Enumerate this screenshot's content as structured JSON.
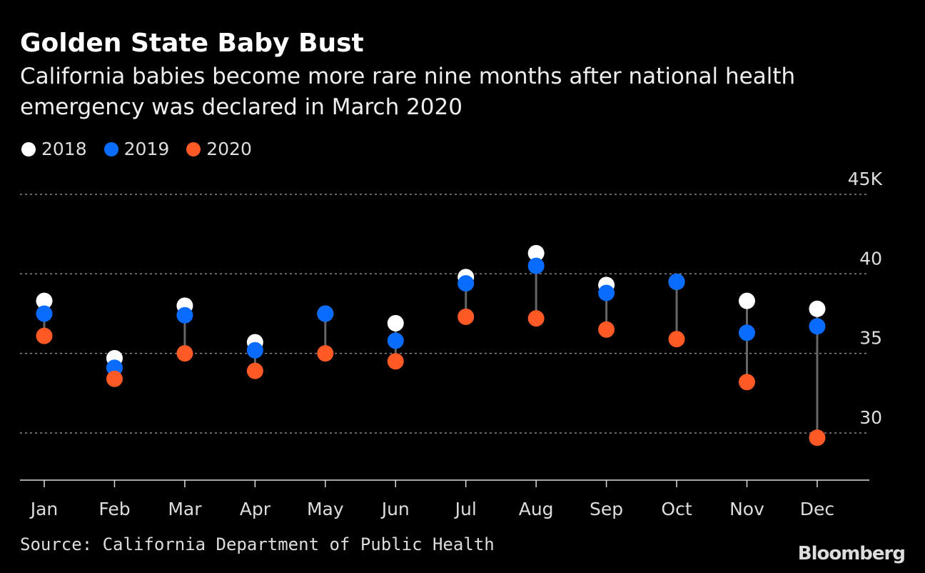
{
  "title": "Golden State Baby Bust",
  "subtitle": "California babies become more rare nine months after national health emergency was declared in March 2020",
  "source": "Source: California Department of Public Health",
  "logo": "Bloomberg",
  "chart_data": {
    "type": "dot-plot",
    "title": "Golden State Baby Bust",
    "categories": [
      "Jan",
      "Feb",
      "Mar",
      "Apr",
      "May",
      "Jun",
      "Jul",
      "Aug",
      "Sep",
      "Oct",
      "Nov",
      "Dec"
    ],
    "series": [
      {
        "name": "2018",
        "color": "#ffffff",
        "values": [
          38.3,
          34.7,
          38.0,
          35.7,
          37.5,
          36.9,
          39.8,
          41.3,
          39.3,
          39.5,
          38.3,
          37.8
        ]
      },
      {
        "name": "2019",
        "color": "#0a6cff",
        "values": [
          37.5,
          34.1,
          37.4,
          35.2,
          37.5,
          35.8,
          39.4,
          40.5,
          38.8,
          39.5,
          36.3,
          36.7
        ]
      },
      {
        "name": "2020",
        "color": "#ff5a26",
        "values": [
          36.1,
          33.4,
          35.0,
          33.9,
          35.0,
          34.5,
          37.3,
          37.2,
          36.5,
          35.9,
          33.2,
          29.7
        ]
      }
    ],
    "yticks": [
      30,
      35,
      40,
      45
    ],
    "ytick_labels": [
      "30",
      "35",
      "40",
      "45K"
    ],
    "ylim": [
      27,
      46
    ],
    "grid": true,
    "legend": "top-left"
  }
}
